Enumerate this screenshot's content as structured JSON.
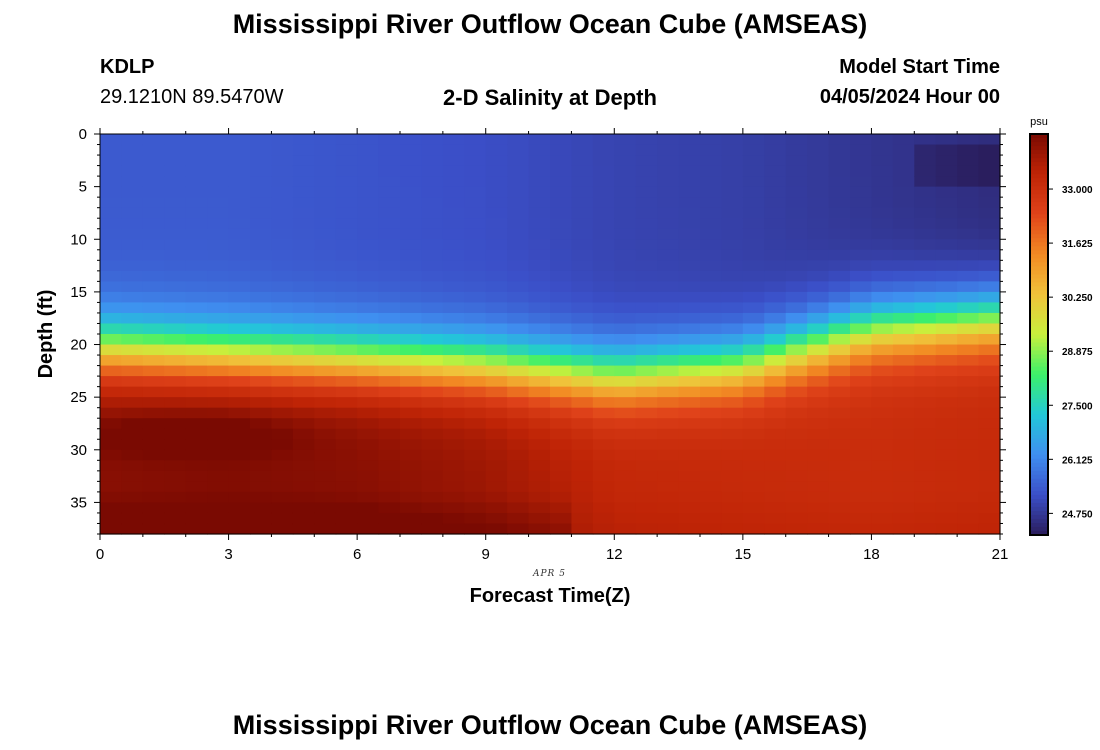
{
  "title_top": "Mississippi River Outflow Ocean Cube (AMSEAS)",
  "title_bottom": "Mississippi River Outflow Ocean Cube (AMSEAS)",
  "station": {
    "id": "KDLP",
    "coords": "29.1210N  89.5470W"
  },
  "subtitle": "2-D Salinity at Depth",
  "model": {
    "label": "Model Start Time",
    "start": "04/05/2024 Hour 00"
  },
  "date_tag": "APR 5",
  "chart_data": {
    "type": "heatmap",
    "xlabel": "Forecast Time(Z)",
    "ylabel": "Depth (ft)",
    "xlim": [
      0,
      21
    ],
    "ylim": [
      0,
      38
    ],
    "y_inverted": true,
    "x_ticks": [
      "0",
      "3",
      "6",
      "9",
      "12",
      "15",
      "18",
      "21"
    ],
    "y_ticks": [
      "0",
      "5",
      "10",
      "15",
      "20",
      "25",
      "30",
      "35"
    ],
    "colorbar": {
      "unit": "psu",
      "range": [
        24.2,
        34.4
      ],
      "ticks": [
        "24.750",
        "26.125",
        "27.500",
        "28.875",
        "30.250",
        "31.625",
        "33.000"
      ],
      "colors": [
        "#2a1d5c",
        "#3b4fc8",
        "#3f8ff0",
        "#22c8d8",
        "#3cf06a",
        "#c8f03c",
        "#f0c23a",
        "#f28a23",
        "#e0431a",
        "#bf2406",
        "#7a0a02"
      ]
    },
    "profiles": {
      "hours": [
        0,
        3,
        6,
        9,
        12,
        15,
        18,
        21
      ],
      "halocline_depth_ft": [
        20.5,
        21.0,
        21.5,
        22.0,
        23.0,
        22.0,
        18.5,
        17.5
      ],
      "surface_salinity": [
        25.4,
        25.4,
        25.3,
        25.2,
        25.0,
        24.9,
        24.7,
        24.5
      ],
      "bottom_salinity": [
        34.2,
        34.3,
        34.2,
        33.9,
        33.3,
        33.2,
        33.1,
        33.2
      ]
    },
    "annotations": [
      {
        "text": "low-salinity patch",
        "x_range": [
          19,
          21
        ],
        "depth_range": [
          1.5,
          4.5
        ],
        "salinity": 24.2
      }
    ]
  }
}
